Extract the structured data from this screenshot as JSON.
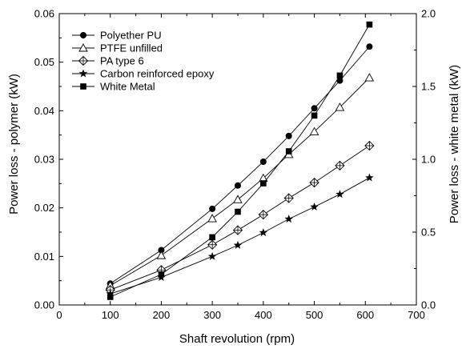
{
  "chart_data": {
    "type": "line",
    "xlabel": "Shaft revolution (rpm)",
    "ylabel_left": "Power loss - polymer (kW)",
    "ylabel_right": "Power loss - white metal (kW)",
    "xlim": [
      0,
      700
    ],
    "ylim_left": [
      0.0,
      0.06
    ],
    "ylim_right": [
      0.0,
      2.0
    ],
    "x_ticks": [
      0,
      100,
      200,
      300,
      400,
      500,
      600,
      700
    ],
    "x_tick_labels": [
      "0",
      "100",
      "200",
      "300",
      "400",
      "500",
      "600",
      "700"
    ],
    "y_left_ticks": [
      0.0,
      0.01,
      0.02,
      0.03,
      0.04,
      0.05,
      0.06
    ],
    "y_left_tick_labels": [
      "0.00",
      "0.01",
      "0.02",
      "0.03",
      "0.04",
      "0.05",
      "0.06"
    ],
    "y_right_ticks": [
      0.0,
      0.5,
      1.0,
      1.5,
      2.0
    ],
    "y_right_tick_labels": [
      "0.0",
      "0.5",
      "1.0",
      "1.5",
      "2.0"
    ],
    "grid": false,
    "legend_position": "top-left",
    "series": [
      {
        "name": "Polyether PU",
        "axis": "left",
        "marker": "circle-filled",
        "color": "#000000",
        "x": [
          100,
          200,
          300,
          350,
          400,
          450,
          500,
          550,
          608
        ],
        "y": [
          0.0044,
          0.0113,
          0.0198,
          0.0246,
          0.0295,
          0.0348,
          0.0405,
          0.0462,
          0.0532
        ]
      },
      {
        "name": "PTFE unfilled",
        "axis": "left",
        "marker": "triangle-open",
        "color": "#000000",
        "x": [
          100,
          200,
          300,
          350,
          400,
          450,
          500,
          550,
          608
        ],
        "y": [
          0.004,
          0.0102,
          0.0178,
          0.0217,
          0.0261,
          0.031,
          0.0357,
          0.0407,
          0.0468
        ]
      },
      {
        "name": "PA  type 6",
        "axis": "left",
        "marker": "diamond-cross",
        "color": "#000000",
        "x": [
          100,
          200,
          300,
          350,
          400,
          450,
          500,
          550,
          608
        ],
        "y": [
          0.0031,
          0.0072,
          0.0124,
          0.0154,
          0.0186,
          0.022,
          0.0252,
          0.0287,
          0.0328
        ]
      },
      {
        "name": "Carbon reinforced epoxy",
        "axis": "left",
        "marker": "star-filled",
        "color": "#000000",
        "x": [
          100,
          200,
          300,
          350,
          400,
          450,
          500,
          550,
          608
        ],
        "y": [
          0.0023,
          0.0057,
          0.01,
          0.0123,
          0.0149,
          0.0177,
          0.0202,
          0.0228,
          0.0262
        ]
      },
      {
        "name": "White Metal",
        "axis": "right",
        "marker": "square-filled",
        "color": "#000000",
        "x": [
          100,
          200,
          300,
          350,
          400,
          450,
          500,
          550,
          608
        ],
        "y": [
          0.055,
          0.21,
          0.465,
          0.64,
          0.835,
          1.055,
          1.3,
          1.575,
          1.925
        ]
      }
    ]
  }
}
